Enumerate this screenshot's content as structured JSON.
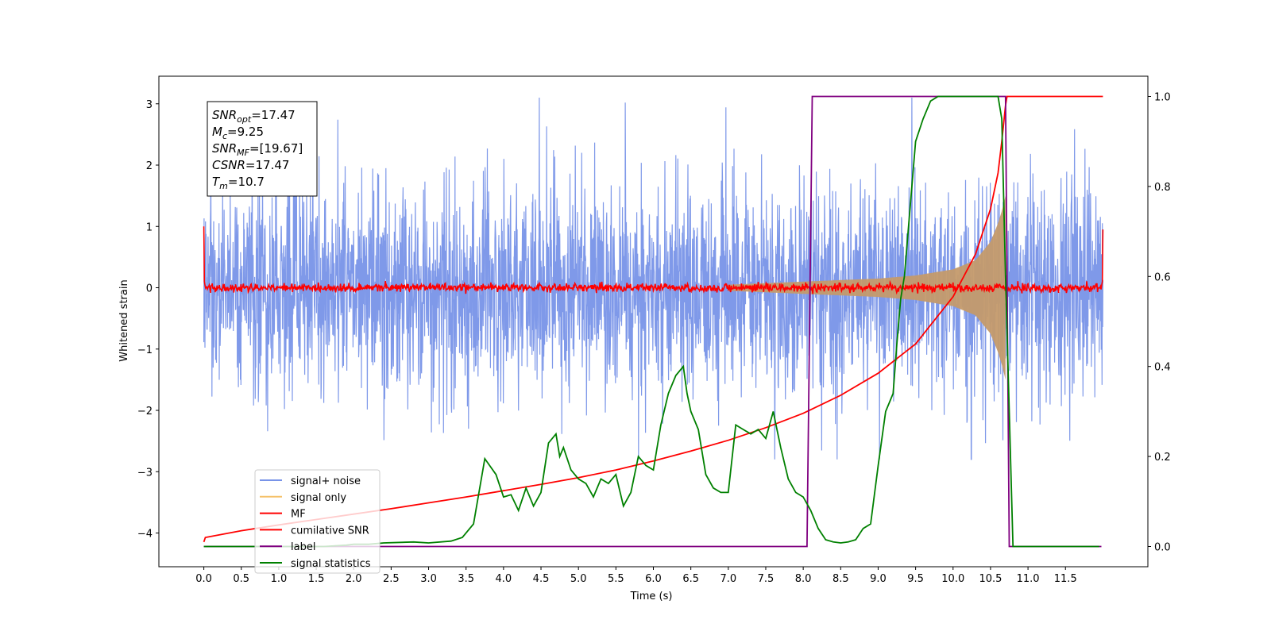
{
  "chart_data": {
    "type": "line",
    "xlabel": "Time (s)",
    "ylabel": "Whitened strain",
    "xlim": [
      -0.6,
      12.6
    ],
    "ylim": [
      -4.55,
      3.45
    ],
    "y2lim": [
      -0.045,
      1.045
    ],
    "x_ticks": [
      "0.0",
      "0.5",
      "1.0",
      "1.5",
      "2.0",
      "2.5",
      "3.0",
      "3.5",
      "4.0",
      "4.5",
      "5.0",
      "5.5",
      "6.0",
      "6.5",
      "7.0",
      "7.5",
      "8.0",
      "8.5",
      "9.0",
      "9.5",
      "10.0",
      "10.5",
      "11.0",
      "11.5"
    ],
    "y_ticks": [
      "3",
      "2",
      "1",
      "0",
      "−1",
      "−2",
      "−3",
      "−4"
    ],
    "y2_ticks": [
      "1.0",
      "0.8",
      "0.6",
      "0.4",
      "0.2",
      "0.0"
    ],
    "info_box": [
      {
        "sym": "SNR",
        "sub": "opt",
        "val": "=17.47"
      },
      {
        "sym": "M",
        "sub": "c",
        "val": "=9.25"
      },
      {
        "sym": "SNR",
        "sub": "MF",
        "val": "=[19.67]"
      },
      {
        "sym": "CSNR",
        "sub": "",
        "val": "=17.47"
      },
      {
        "sym": "T",
        "sub": "m",
        "val": "=10.7"
      }
    ],
    "legend": [
      {
        "label": "signal+ noise",
        "color": "#7893e8"
      },
      {
        "label": "signal only",
        "color": "#f5c26b"
      },
      {
        "label": "MF",
        "color": "#ff0000"
      },
      {
        "label": "cumilative SNR",
        "color": "#ff0000"
      },
      {
        "label": "label",
        "color": "#800080"
      },
      {
        "label": "signal statistics",
        "color": "#008000"
      }
    ],
    "series": [
      {
        "name": "signal+ noise",
        "axis": "left",
        "color": "#7893e8",
        "x_range": [
          0,
          12.0
        ],
        "amplitude_typical": 1.0,
        "extreme_range": [
          -2.8,
          3.1
        ]
      },
      {
        "name": "signal only",
        "axis": "left",
        "color": "#c49a6c",
        "envelope": {
          "x": [
            7.0,
            8.0,
            9.0,
            9.5,
            10.0,
            10.3,
            10.5,
            10.6,
            10.65,
            10.7
          ],
          "y": [
            0.05,
            0.1,
            0.15,
            0.2,
            0.3,
            0.45,
            0.75,
            1.05,
            1.25,
            1.5
          ]
        }
      },
      {
        "name": "MF",
        "axis": "left",
        "color": "#ff0000",
        "x_range": [
          0,
          12.0
        ],
        "baseline": 0,
        "start_value": 1.0,
        "end_value": 0.95
      },
      {
        "name": "cumilative SNR",
        "axis": "right",
        "color": "#ff0000",
        "x": [
          0,
          0.02,
          0.5,
          1,
          1.5,
          2,
          2.5,
          3,
          3.5,
          4,
          4.5,
          5,
          5.5,
          6,
          6.5,
          7,
          7.5,
          8,
          8.5,
          9,
          9.5,
          10,
          10.3,
          10.5,
          10.6,
          10.65,
          10.7,
          10.72,
          12.0
        ],
        "y": [
          0.01,
          0.02,
          0.035,
          0.048,
          0.06,
          0.072,
          0.084,
          0.097,
          0.11,
          0.124,
          0.138,
          0.153,
          0.17,
          0.19,
          0.212,
          0.236,
          0.264,
          0.296,
          0.336,
          0.385,
          0.45,
          0.555,
          0.65,
          0.75,
          0.83,
          0.9,
          0.98,
          1.0,
          1.0
        ]
      },
      {
        "name": "label",
        "axis": "right",
        "color": "#800080",
        "x": [
          0,
          8.05,
          8.12,
          10.7,
          10.75,
          10.8,
          11.98
        ],
        "y": [
          0,
          0,
          1.0,
          1.0,
          0,
          0,
          0
        ]
      },
      {
        "name": "signal statistics",
        "axis": "right",
        "color": "#008000",
        "x": [
          0,
          1.6,
          1.9,
          2.0,
          2.2,
          2.4,
          2.8,
          3.0,
          3.3,
          3.45,
          3.6,
          3.75,
          3.9,
          4.0,
          4.1,
          4.2,
          4.3,
          4.4,
          4.5,
          4.6,
          4.7,
          4.75,
          4.8,
          4.9,
          5.0,
          5.1,
          5.2,
          5.3,
          5.4,
          5.5,
          5.6,
          5.7,
          5.8,
          5.9,
          6.0,
          6.1,
          6.2,
          6.3,
          6.4,
          6.45,
          6.5,
          6.6,
          6.7,
          6.8,
          6.9,
          7.0,
          7.1,
          7.2,
          7.3,
          7.4,
          7.5,
          7.6,
          7.7,
          7.8,
          7.9,
          8.0,
          8.1,
          8.2,
          8.3,
          8.4,
          8.5,
          8.6,
          8.7,
          8.8,
          8.9,
          9.0,
          9.1,
          9.15,
          9.2,
          9.25,
          9.3,
          9.35,
          9.4,
          9.5,
          9.6,
          9.7,
          9.8,
          10.0,
          10.4,
          10.6,
          10.65,
          10.7,
          10.8,
          10.9,
          11.95
        ],
        "y": [
          0,
          0,
          0.003,
          0.005,
          0.005,
          0.008,
          0.01,
          0.008,
          0.012,
          0.02,
          0.05,
          0.195,
          0.16,
          0.11,
          0.115,
          0.08,
          0.13,
          0.09,
          0.12,
          0.23,
          0.25,
          0.2,
          0.22,
          0.17,
          0.15,
          0.14,
          0.11,
          0.15,
          0.14,
          0.16,
          0.09,
          0.12,
          0.2,
          0.18,
          0.17,
          0.27,
          0.34,
          0.38,
          0.4,
          0.34,
          0.3,
          0.26,
          0.16,
          0.13,
          0.12,
          0.12,
          0.27,
          0.26,
          0.25,
          0.26,
          0.24,
          0.3,
          0.22,
          0.15,
          0.12,
          0.11,
          0.08,
          0.04,
          0.015,
          0.01,
          0.008,
          0.01,
          0.015,
          0.04,
          0.05,
          0.18,
          0.3,
          0.32,
          0.34,
          0.45,
          0.55,
          0.6,
          0.7,
          0.9,
          0.95,
          0.99,
          1.0,
          1.0,
          1.0,
          1.0,
          0.95,
          0.6,
          0.0,
          0.0,
          0.0
        ]
      }
    ]
  }
}
